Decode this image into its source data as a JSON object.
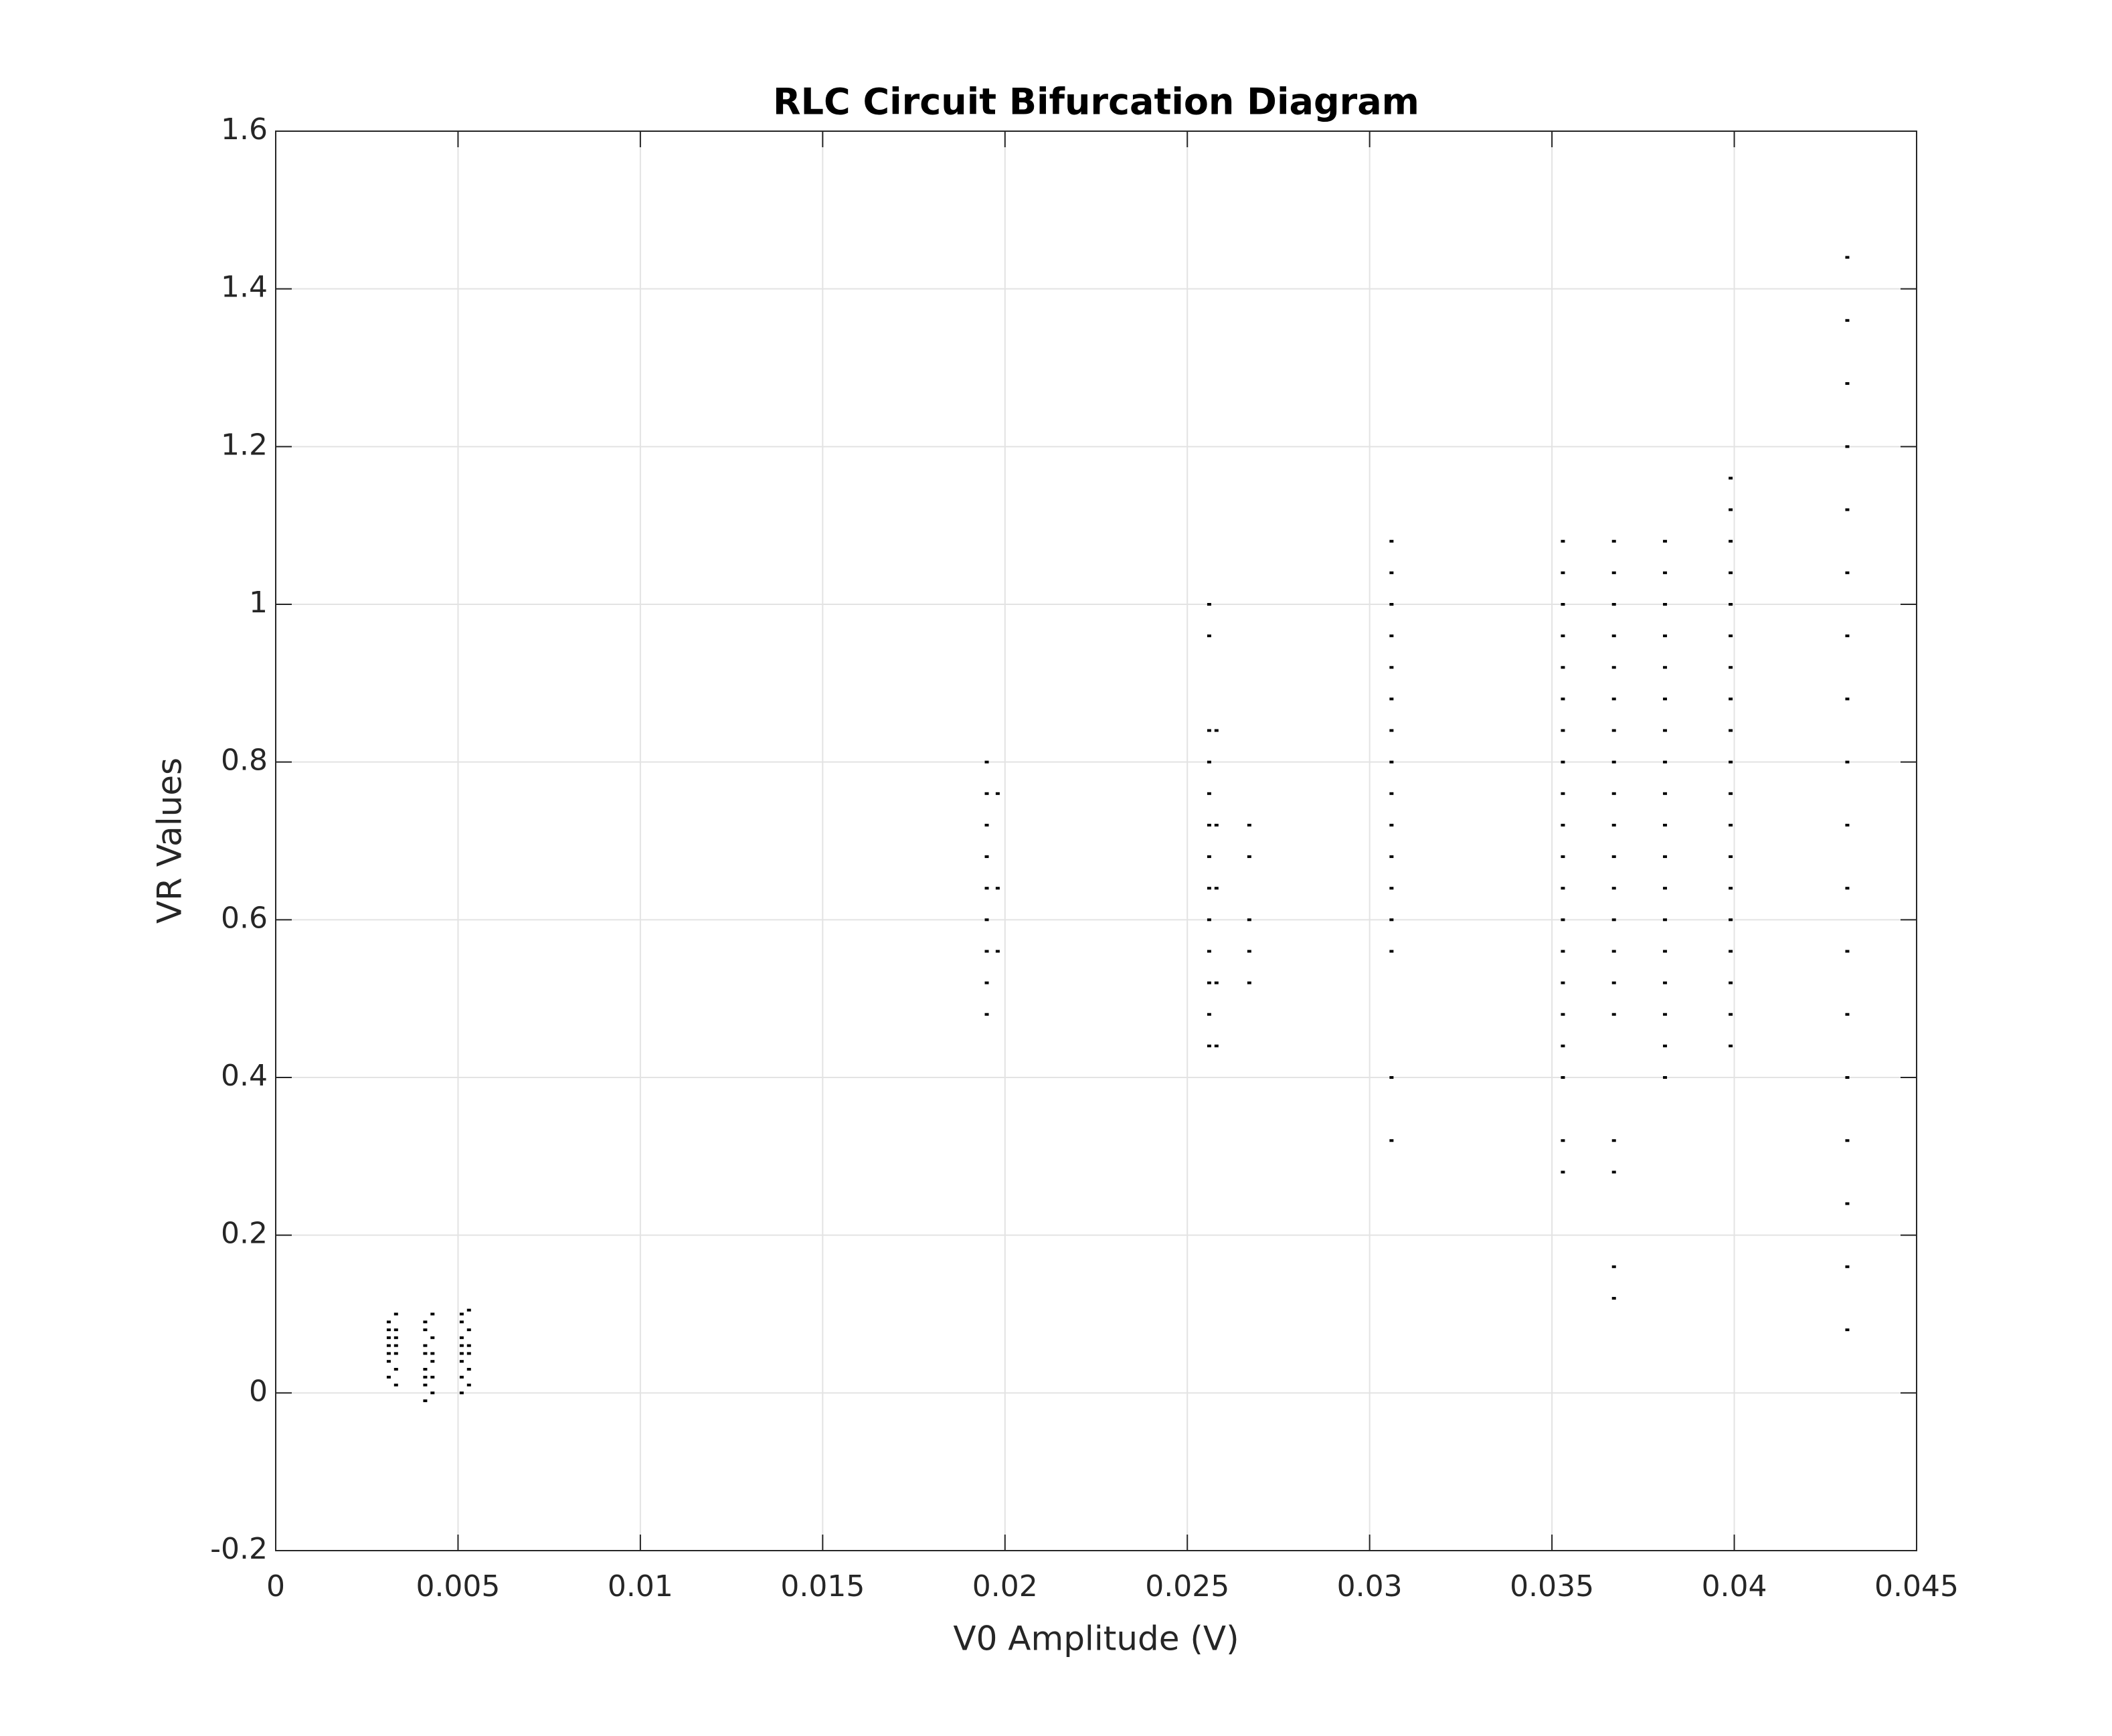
{
  "chart_data": {
    "type": "scatter",
    "title": "RLC Circuit Bifurcation Diagram",
    "x_label": "V0 Amplitude (V)",
    "y_label": "VR Values",
    "color": "#000000",
    "grid": true,
    "xlim": [
      0,
      0.045
    ],
    "xticks": [
      0,
      0.005,
      0.01,
      0.015,
      0.02,
      0.025,
      0.03,
      0.035,
      0.04,
      0.045
    ],
    "ylim": [
      -0.2,
      1.6
    ],
    "yticks": [
      -0.2,
      0,
      0.2,
      0.4,
      0.6,
      0.8,
      1,
      1.2,
      1.4,
      1.6
    ],
    "x": [
      0.0031,
      0.0031,
      0.0031,
      0.0031,
      0.0031,
      0.0031,
      0.0031,
      0.0033,
      0.0033,
      0.0033,
      0.0033,
      0.0033,
      0.0033,
      0.0033,
      0.0041,
      0.0041,
      0.0041,
      0.0041,
      0.0041,
      0.0041,
      0.0041,
      0.0041,
      0.0043,
      0.0043,
      0.0043,
      0.0043,
      0.0043,
      0.0043,
      0.0051,
      0.0051,
      0.0051,
      0.0051,
      0.0051,
      0.0051,
      0.0051,
      0.0051,
      0.0053,
      0.0053,
      0.0053,
      0.0053,
      0.0053,
      0.0053,
      0.0195,
      0.0195,
      0.0195,
      0.0195,
      0.0195,
      0.0195,
      0.0195,
      0.0195,
      0.0195,
      0.0198,
      0.0198,
      0.0198,
      0.0256,
      0.0256,
      0.0256,
      0.0256,
      0.0256,
      0.0256,
      0.0256,
      0.0256,
      0.0256,
      0.0256,
      0.0256,
      0.0256,
      0.0256,
      0.0258,
      0.0258,
      0.0258,
      0.0258,
      0.0258,
      0.0267,
      0.0267,
      0.0267,
      0.0267,
      0.0267,
      0.0306,
      0.0306,
      0.0306,
      0.0306,
      0.0306,
      0.0306,
      0.0306,
      0.0306,
      0.0306,
      0.0306,
      0.0306,
      0.0306,
      0.0306,
      0.0306,
      0.0306,
      0.0306,
      0.0353,
      0.0353,
      0.0353,
      0.0353,
      0.0353,
      0.0353,
      0.0353,
      0.0353,
      0.0353,
      0.0353,
      0.0353,
      0.0353,
      0.0353,
      0.0353,
      0.0353,
      0.0353,
      0.0353,
      0.0353,
      0.0353,
      0.0353,
      0.0367,
      0.0367,
      0.0367,
      0.0367,
      0.0367,
      0.0367,
      0.0367,
      0.0367,
      0.0367,
      0.0367,
      0.0367,
      0.0367,
      0.0367,
      0.0367,
      0.0367,
      0.0367,
      0.0367,
      0.0367,
      0.0367,
      0.0367,
      0.0381,
      0.0381,
      0.0381,
      0.0381,
      0.0381,
      0.0381,
      0.0381,
      0.0381,
      0.0381,
      0.0381,
      0.0381,
      0.0381,
      0.0381,
      0.0381,
      0.0381,
      0.0381,
      0.0381,
      0.0381,
      0.0399,
      0.0399,
      0.0399,
      0.0399,
      0.0399,
      0.0399,
      0.0399,
      0.0399,
      0.0399,
      0.0399,
      0.0399,
      0.0399,
      0.0399,
      0.0399,
      0.0399,
      0.0399,
      0.0399,
      0.0399,
      0.0399,
      0.0431,
      0.0431,
      0.0431,
      0.0431,
      0.0431,
      0.0431,
      0.0431,
      0.0431,
      0.0431,
      0.0431,
      0.0431,
      0.0431,
      0.0431,
      0.0431,
      0.0431,
      0.0431,
      0.0431,
      0.0431
    ],
    "values": [
      0.02,
      0.04,
      0.05,
      0.06,
      0.07,
      0.08,
      0.09,
      0.01,
      0.03,
      0.05,
      0.06,
      0.07,
      0.08,
      0.1,
      -0.01,
      0.01,
      0.02,
      0.03,
      0.05,
      0.06,
      0.08,
      0.09,
      0.0,
      0.02,
      0.04,
      0.05,
      0.07,
      0.1,
      0.0,
      0.02,
      0.04,
      0.05,
      0.06,
      0.07,
      0.09,
      0.1,
      0.01,
      0.03,
      0.05,
      0.06,
      0.08,
      0.105,
      0.48,
      0.52,
      0.56,
      0.6,
      0.64,
      0.68,
      0.72,
      0.76,
      0.8,
      0.56,
      0.64,
      0.76,
      0.44,
      0.48,
      0.52,
      0.56,
      0.6,
      0.64,
      0.68,
      0.72,
      0.76,
      0.8,
      0.84,
      0.96,
      1.0,
      0.44,
      0.52,
      0.64,
      0.72,
      0.84,
      0.52,
      0.56,
      0.6,
      0.68,
      0.72,
      0.32,
      0.4,
      0.56,
      0.6,
      0.64,
      0.68,
      0.72,
      0.76,
      0.8,
      0.84,
      0.88,
      0.92,
      0.96,
      1.0,
      1.04,
      1.08,
      0.28,
      0.32,
      0.4,
      0.44,
      0.48,
      0.52,
      0.56,
      0.6,
      0.64,
      0.68,
      0.72,
      0.76,
      0.8,
      0.84,
      0.88,
      0.92,
      0.96,
      1.0,
      1.04,
      1.08,
      0.12,
      0.16,
      0.28,
      0.32,
      0.48,
      0.52,
      0.56,
      0.6,
      0.64,
      0.68,
      0.72,
      0.76,
      0.8,
      0.84,
      0.88,
      0.92,
      0.96,
      1.0,
      1.04,
      1.08,
      0.4,
      0.44,
      0.48,
      0.52,
      0.56,
      0.6,
      0.64,
      0.68,
      0.72,
      0.76,
      0.8,
      0.84,
      0.88,
      0.92,
      0.96,
      1.0,
      1.04,
      1.08,
      0.44,
      0.48,
      0.52,
      0.56,
      0.6,
      0.64,
      0.68,
      0.72,
      0.76,
      0.8,
      0.84,
      0.88,
      0.92,
      0.96,
      1.0,
      1.04,
      1.08,
      1.12,
      1.16,
      0.08,
      0.16,
      0.24,
      0.32,
      0.4,
      0.48,
      0.56,
      0.64,
      0.72,
      0.8,
      0.88,
      0.96,
      1.04,
      1.12,
      1.2,
      1.28,
      1.36,
      1.44
    ]
  }
}
